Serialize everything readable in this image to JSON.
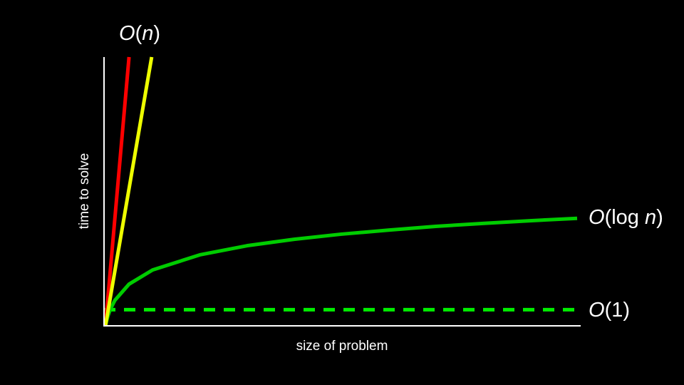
{
  "chart_data": {
    "type": "line",
    "title": "",
    "xlabel": "size of problem",
    "ylabel": "time to solve",
    "xlim": [
      0,
      100
    ],
    "ylim": [
      0,
      100
    ],
    "grid": false,
    "ticks": false,
    "series": [
      {
        "name": "O(n)",
        "color": "#ff0000",
        "style": "solid",
        "points": [
          [
            0,
            0
          ],
          [
            5,
            100
          ]
        ]
      },
      {
        "name": "O(n)",
        "color": "#eeff00",
        "style": "solid",
        "points": [
          [
            0,
            0
          ],
          [
            9.8,
            100
          ]
        ]
      },
      {
        "name": "O(log n)",
        "color": "#00cc00",
        "style": "solid",
        "points": [
          [
            0,
            0
          ],
          [
            0.25,
            1.9
          ],
          [
            0.5,
            3.5
          ],
          [
            1,
            6.0
          ],
          [
            2,
            9.5
          ],
          [
            5,
            15.5
          ],
          [
            10,
            20.8
          ],
          [
            20,
            26.4
          ],
          [
            30,
            29.8
          ],
          [
            40,
            32.2
          ],
          [
            50,
            34.1
          ],
          [
            60,
            35.6
          ],
          [
            70,
            37.0
          ],
          [
            80,
            38.1
          ],
          [
            90,
            39.1
          ],
          [
            100,
            40.0
          ]
        ]
      },
      {
        "name": "O(1)",
        "color": "#00ee00",
        "style": "dashed",
        "points": [
          [
            0,
            6
          ],
          [
            100,
            6
          ]
        ]
      }
    ],
    "labels": {
      "linear": {
        "prefix": "O",
        "open": "(",
        "var": "n",
        "close": ")"
      },
      "log": {
        "prefix": "O",
        "open": "(log ",
        "var": "n",
        "close": ")"
      },
      "const": {
        "prefix": "O",
        "rest": "(1)"
      }
    }
  }
}
